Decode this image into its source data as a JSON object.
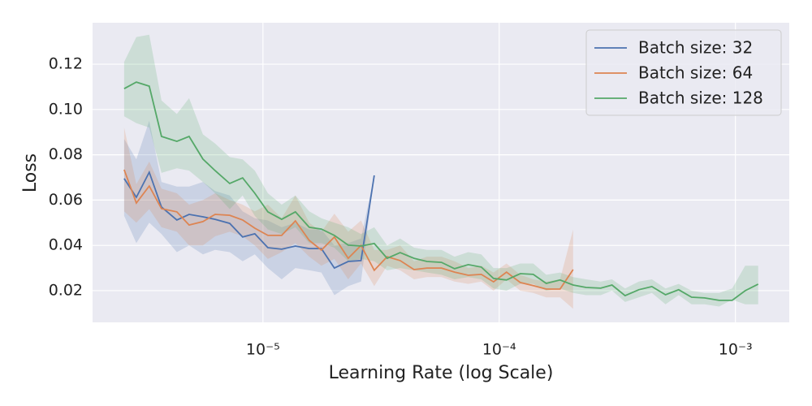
{
  "chart_data": {
    "type": "line",
    "x_label": "Learning Rate (log Scale)",
    "y_label": "Loss",
    "xlog": true,
    "grid": true,
    "legend": "upper right",
    "xlim": [
      1.9e-06,
      0.00169
    ],
    "ylim": [
      0.006,
      0.1383
    ],
    "xticks": [
      {
        "value": 1e-05,
        "label": "10⁻⁵"
      },
      {
        "value": 0.0001,
        "label": "10⁻⁴"
      },
      {
        "value": 0.001,
        "label": "10⁻³"
      }
    ],
    "yticks": [
      0.02,
      0.04,
      0.06,
      0.08,
      {
        "value": 0.1,
        "label": "0.10"
      },
      0.12
    ],
    "series": [
      {
        "name": "Batch size: 32",
        "color": "#4c72b0",
        "x": [
          2.585e-06,
          2.91e-06,
          3.3e-06,
          3.72e-06,
          4.32e-06,
          4.87e-06,
          5.57e-06,
          6.27e-06,
          7.23e-06,
          8.2e-06,
          9.24e-06,
          1.049e-05,
          1.2e-05,
          1.372e-05,
          1.57e-05,
          1.767e-05,
          2.006e-05,
          2.295e-05,
          2.6e-05,
          2.96e-05
        ],
        "values": [
          0.0695,
          0.0612,
          0.0723,
          0.0569,
          0.0512,
          0.0537,
          0.0526,
          0.0515,
          0.0497,
          0.0437,
          0.0451,
          0.039,
          0.0383,
          0.0397,
          0.0386,
          0.0386,
          0.03,
          0.0329,
          0.0333,
          0.0709
        ],
        "upper": [
          0.087,
          0.078,
          0.095,
          0.068,
          0.066,
          0.066,
          0.068,
          0.064,
          0.062,
          0.055,
          0.052,
          0.051,
          0.048,
          0.05,
          0.047,
          0.047,
          0.04,
          0.041,
          0.043,
          0.0709
        ],
        "lower": [
          0.053,
          0.041,
          0.05,
          0.045,
          0.037,
          0.04,
          0.036,
          0.038,
          0.037,
          0.033,
          0.036,
          0.03,
          0.025,
          0.03,
          0.029,
          0.028,
          0.018,
          0.022,
          0.024,
          0.0709
        ]
      },
      {
        "name": "Batch size: 64",
        "color": "#dd8452",
        "x": [
          2.585e-06,
          2.91e-06,
          3.3e-06,
          3.72e-06,
          4.32e-06,
          4.87e-06,
          5.57e-06,
          6.27e-06,
          7.23e-06,
          8.2e-06,
          9.24e-06,
          1.049e-05,
          1.2e-05,
          1.372e-05,
          1.57e-05,
          1.767e-05,
          2.006e-05,
          2.295e-05,
          2.6e-05,
          2.96e-05,
          3.356e-05,
          3.81e-05,
          4.36e-05,
          4.945e-05,
          5.7e-05,
          6.47e-05,
          7.4e-05,
          8.4e-05,
          9.46e-05,
          0.0001074,
          0.0001228,
          0.0001394,
          0.0001582,
          0.000181,
          0.0002055
        ],
        "values": [
          0.0734,
          0.0587,
          0.0662,
          0.0562,
          0.0548,
          0.049,
          0.0505,
          0.0537,
          0.0533,
          0.0512,
          0.0476,
          0.0444,
          0.0444,
          0.0508,
          0.0422,
          0.0379,
          0.0437,
          0.0343,
          0.04,
          0.029,
          0.035,
          0.0333,
          0.0293,
          0.03,
          0.03,
          0.0282,
          0.0268,
          0.0272,
          0.0239,
          0.0282,
          0.0236,
          0.0222,
          0.0207,
          0.0207,
          0.0293
        ],
        "upper": [
          0.092,
          0.067,
          0.077,
          0.065,
          0.063,
          0.058,
          0.06,
          0.063,
          0.06,
          0.058,
          0.055,
          0.058,
          0.052,
          0.062,
          0.05,
          0.046,
          0.054,
          0.046,
          0.051,
          0.038,
          0.038,
          0.04,
          0.033,
          0.035,
          0.035,
          0.033,
          0.03,
          0.031,
          0.028,
          0.032,
          0.027,
          0.025,
          0.024,
          0.025,
          0.047
        ],
        "lower": [
          0.055,
          0.05,
          0.056,
          0.048,
          0.046,
          0.04,
          0.04,
          0.044,
          0.046,
          0.044,
          0.04,
          0.034,
          0.037,
          0.041,
          0.035,
          0.031,
          0.034,
          0.025,
          0.032,
          0.022,
          0.031,
          0.029,
          0.025,
          0.026,
          0.026,
          0.024,
          0.023,
          0.024,
          0.02,
          0.025,
          0.02,
          0.019,
          0.017,
          0.017,
          0.012
        ]
      },
      {
        "name": "Batch size: 128",
        "color": "#55a868",
        "x": [
          2.585e-06,
          2.91e-06,
          3.3e-06,
          3.72e-06,
          4.32e-06,
          4.87e-06,
          5.57e-06,
          6.27e-06,
          7.23e-06,
          8.2e-06,
          9.24e-06,
          1.049e-05,
          1.2e-05,
          1.372e-05,
          1.57e-05,
          1.767e-05,
          2.006e-05,
          2.295e-05,
          2.6e-05,
          2.96e-05,
          3.356e-05,
          3.81e-05,
          4.36e-05,
          4.945e-05,
          5.7e-05,
          6.47e-05,
          7.4e-05,
          8.4e-05,
          9.46e-05,
          0.0001074,
          0.0001228,
          0.0001394,
          0.0001582,
          0.000181,
          0.0002055,
          0.0002332,
          0.000269,
          0.0003004,
          0.000341,
          0.00039,
          0.000443,
          0.000506,
          0.000575,
          0.000652,
          0.00074,
          0.000853,
          0.000969,
          0.0011,
          0.001248
        ],
        "values": [
          0.1092,
          0.1121,
          0.1103,
          0.0881,
          0.0859,
          0.0881,
          0.0781,
          0.073,
          0.0673,
          0.0698,
          0.063,
          0.0548,
          0.0515,
          0.0548,
          0.048,
          0.0472,
          0.0444,
          0.0401,
          0.0397,
          0.0408,
          0.0343,
          0.0368,
          0.0343,
          0.0329,
          0.0325,
          0.0297,
          0.0315,
          0.0304,
          0.0254,
          0.0247,
          0.0275,
          0.0272,
          0.0232,
          0.0247,
          0.0225,
          0.0214,
          0.0211,
          0.0225,
          0.0178,
          0.0204,
          0.0218,
          0.0182,
          0.0204,
          0.0171,
          0.0168,
          0.0157,
          0.0157,
          0.02,
          0.0229
        ],
        "upper": [
          0.121,
          0.132,
          0.133,
          0.104,
          0.098,
          0.105,
          0.089,
          0.085,
          0.079,
          0.078,
          0.073,
          0.063,
          0.058,
          0.062,
          0.055,
          0.052,
          0.05,
          0.048,
          0.045,
          0.048,
          0.04,
          0.043,
          0.039,
          0.038,
          0.038,
          0.035,
          0.037,
          0.036,
          0.03,
          0.03,
          0.032,
          0.032,
          0.027,
          0.028,
          0.026,
          0.025,
          0.024,
          0.025,
          0.021,
          0.024,
          0.025,
          0.021,
          0.023,
          0.02,
          0.019,
          0.019,
          0.021,
          0.031,
          0.031
        ],
        "lower": [
          0.097,
          0.094,
          0.092,
          0.072,
          0.074,
          0.073,
          0.068,
          0.063,
          0.056,
          0.062,
          0.053,
          0.047,
          0.045,
          0.048,
          0.041,
          0.041,
          0.039,
          0.033,
          0.034,
          0.033,
          0.029,
          0.03,
          0.029,
          0.028,
          0.027,
          0.025,
          0.026,
          0.025,
          0.021,
          0.02,
          0.023,
          0.023,
          0.02,
          0.021,
          0.019,
          0.018,
          0.018,
          0.02,
          0.015,
          0.017,
          0.019,
          0.014,
          0.018,
          0.014,
          0.014,
          0.013,
          0.016,
          0.014,
          0.014
        ]
      }
    ]
  }
}
